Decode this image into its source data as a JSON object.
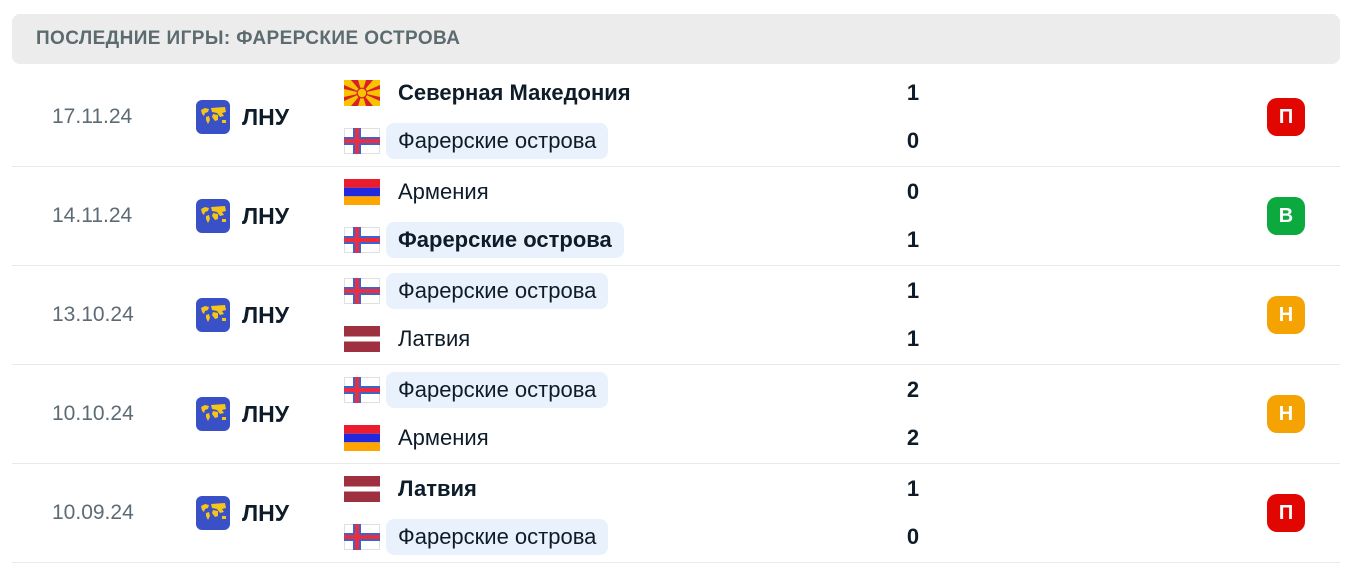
{
  "header": {
    "title": "ПОСЛЕДНИЕ ИГРЫ: ФАРЕРСКИЕ ОСТРОВА"
  },
  "colors": {
    "header_bg": "#ECECEC",
    "header_text": "#5C6B70",
    "date_text": "#5D6B75",
    "dark_text": "#0E1C2A",
    "divider": "#E9E9E9",
    "highlight": "#E9F2FC",
    "win": "#0CA93E",
    "draw": "#F5A302",
    "loss": "#E10600",
    "comp_icon_bg": "#3A50C7",
    "comp_icon_map": "#F5C518"
  },
  "matches": [
    {
      "date": "17.11.24",
      "competition": {
        "label": "ЛНУ",
        "icon": "world-map-icon"
      },
      "home": {
        "name": "Северная Македония",
        "flag": "north-macedonia",
        "score": "1",
        "bold": true,
        "highlight": false
      },
      "away": {
        "name": "Фарерские острова",
        "flag": "faroe-islands",
        "score": "0",
        "bold": false,
        "highlight": true
      },
      "result": {
        "label": "П",
        "type": "loss"
      }
    },
    {
      "date": "14.11.24",
      "competition": {
        "label": "ЛНУ",
        "icon": "world-map-icon"
      },
      "home": {
        "name": "Армения",
        "flag": "armenia",
        "score": "0",
        "bold": false,
        "highlight": false
      },
      "away": {
        "name": "Фарерские острова",
        "flag": "faroe-islands",
        "score": "1",
        "bold": true,
        "highlight": true
      },
      "result": {
        "label": "В",
        "type": "win"
      }
    },
    {
      "date": "13.10.24",
      "competition": {
        "label": "ЛНУ",
        "icon": "world-map-icon"
      },
      "home": {
        "name": "Фарерские острова",
        "flag": "faroe-islands",
        "score": "1",
        "bold": false,
        "highlight": true
      },
      "away": {
        "name": "Латвия",
        "flag": "latvia",
        "score": "1",
        "bold": false,
        "highlight": false
      },
      "result": {
        "label": "Н",
        "type": "draw"
      }
    },
    {
      "date": "10.10.24",
      "competition": {
        "label": "ЛНУ",
        "icon": "world-map-icon"
      },
      "home": {
        "name": "Фарерские острова",
        "flag": "faroe-islands",
        "score": "2",
        "bold": false,
        "highlight": true
      },
      "away": {
        "name": "Армения",
        "flag": "armenia",
        "score": "2",
        "bold": false,
        "highlight": false
      },
      "result": {
        "label": "Н",
        "type": "draw"
      }
    },
    {
      "date": "10.09.24",
      "competition": {
        "label": "ЛНУ",
        "icon": "world-map-icon"
      },
      "home": {
        "name": "Латвия",
        "flag": "latvia",
        "score": "1",
        "bold": true,
        "highlight": false
      },
      "away": {
        "name": "Фарерские острова",
        "flag": "faroe-islands",
        "score": "0",
        "bold": false,
        "highlight": true
      },
      "result": {
        "label": "П",
        "type": "loss"
      }
    }
  ]
}
